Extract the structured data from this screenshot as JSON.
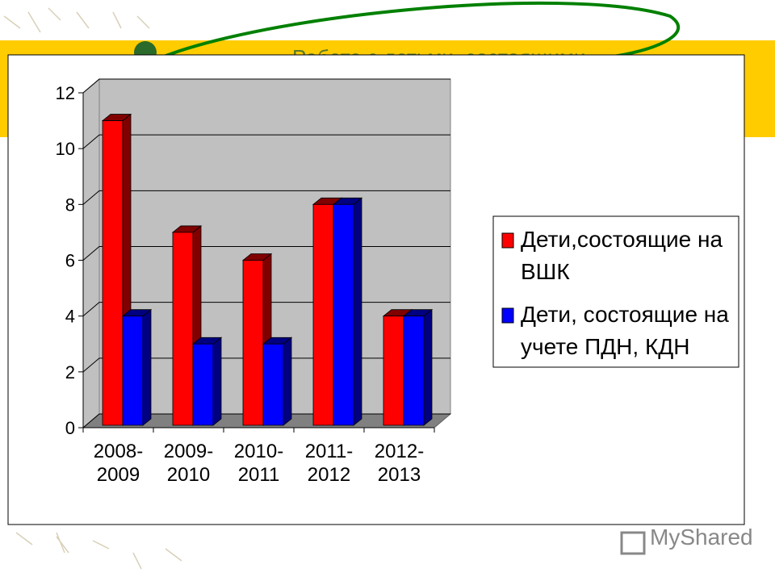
{
  "header": {
    "title": "Работа с детьми, состоящими"
  },
  "watermark": "MyShared",
  "chart_data": {
    "type": "bar3d",
    "categories": [
      "2008-\n2009",
      "2009-\n2010",
      "2010-\n2011",
      "2011-\n2012",
      "2012-\n2013"
    ],
    "series": [
      {
        "name": "Дети,состоящие на\nВШК",
        "color": "#ff0000",
        "values": [
          11,
          7,
          6,
          8,
          4
        ]
      },
      {
        "name": "Дети, состоящие на\nучете ПДН, КДН",
        "color": "#0000ff",
        "values": [
          4,
          3,
          3,
          8,
          4
        ]
      }
    ],
    "ylim": [
      0,
      12
    ],
    "yticks": [
      0,
      2,
      4,
      6,
      8,
      10,
      12
    ],
    "grid": true,
    "legend": "right"
  }
}
